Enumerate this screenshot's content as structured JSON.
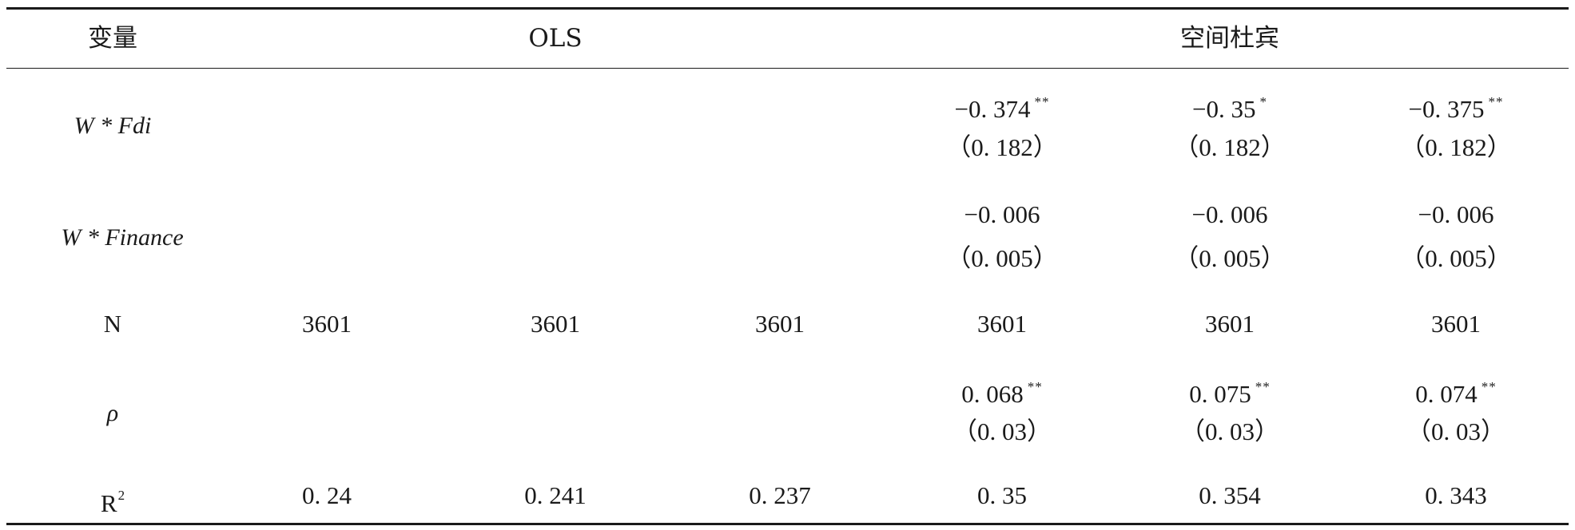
{
  "table": {
    "headers": {
      "variable": "变量",
      "ols": "OLS",
      "spatial": "空间杜宾"
    },
    "rows": {
      "w_fdi": {
        "label": "W * Fdi",
        "coef": [
          {
            "value": "−0. 374",
            "stars": "**"
          },
          {
            "value": "−0. 35",
            "stars": "*"
          },
          {
            "value": "−0. 375",
            "stars": "**"
          }
        ],
        "se": [
          "（0. 182）",
          "（0. 182）",
          "（0. 182）"
        ]
      },
      "w_finance": {
        "label": "W * Finance",
        "coef": [
          "−0. 006",
          "−0. 006",
          "−0. 006"
        ],
        "se": [
          "（0. 005）",
          "（0. 005）",
          "（0. 005）"
        ]
      },
      "n": {
        "label": "N",
        "values": [
          "3601",
          "3601",
          "3601",
          "3601",
          "3601",
          "3601"
        ]
      },
      "rho": {
        "label": "ρ",
        "coef": [
          {
            "value": "0. 068",
            "stars": "**"
          },
          {
            "value": "0. 075",
            "stars": "**"
          },
          {
            "value": "0. 074",
            "stars": "**"
          }
        ],
        "se": [
          "（0. 03）",
          "（0. 03）",
          "（0. 03）"
        ]
      },
      "r2": {
        "label": "R",
        "label_sup": "2",
        "values": [
          "0. 24",
          "0. 241",
          "0. 237",
          "0. 35",
          "0. 354",
          "0. 343"
        ]
      }
    }
  }
}
